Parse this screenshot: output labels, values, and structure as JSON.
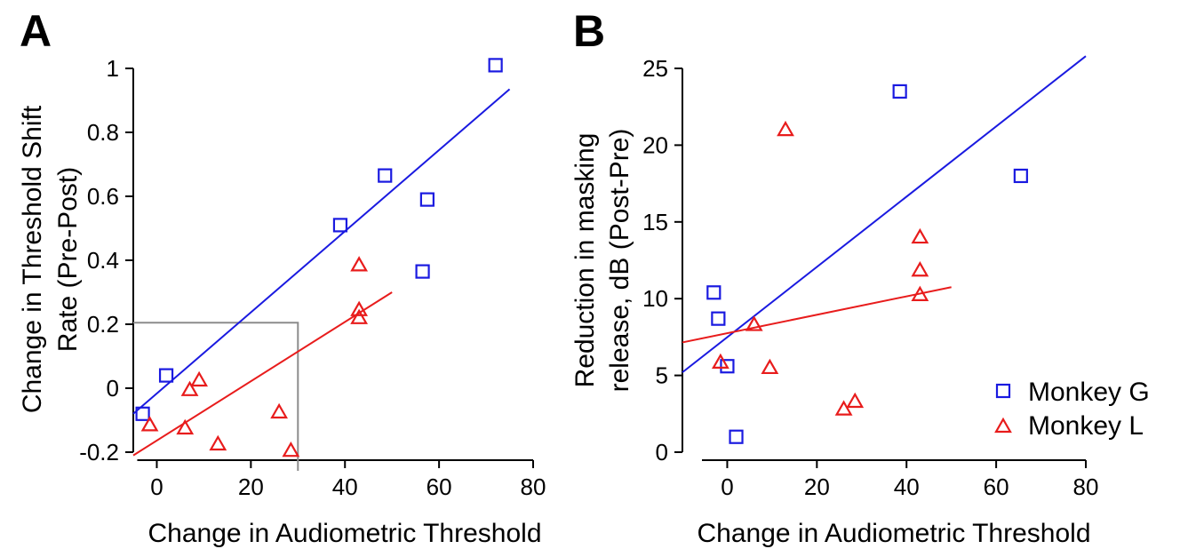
{
  "colors": {
    "monkey_g": "#1a1ae0",
    "monkey_l": "#e81c1c",
    "reference_box": "#8c8c8c",
    "axis": "#000000"
  },
  "chart_data": [
    {
      "panel": "A",
      "type": "scatter",
      "xlabel": "Change in Audiometric Threshold",
      "ylabel": [
        "Change in Threshold Shift",
        "Rate (Pre-Post)"
      ],
      "xlim": [
        -5,
        80
      ],
      "ylim": [
        -0.2,
        1.0
      ],
      "xticks": [
        0,
        20,
        40,
        60,
        80
      ],
      "xtick_labels": [
        "0",
        "20",
        "40",
        "60",
        "80"
      ],
      "yticks": [
        -0.2,
        0,
        0.2,
        0.4,
        0.6,
        0.8,
        1.0
      ],
      "ytick_labels": [
        "-0.2",
        "0",
        "0.2",
        "0.4",
        "0.6",
        "0.8",
        "1"
      ],
      "grid": false,
      "series": [
        {
          "key": "monkey_g",
          "marker": "square",
          "points": [
            [
              -3,
              -0.08
            ],
            [
              2,
              0.04
            ],
            [
              39,
              0.51
            ],
            [
              48.5,
              0.665
            ],
            [
              57.5,
              0.59
            ],
            [
              56.5,
              0.365
            ],
            [
              72,
              1.01
            ]
          ],
          "fit": [
            [
              -5,
              -0.08
            ],
            [
              75,
              0.935
            ]
          ]
        },
        {
          "key": "monkey_l",
          "marker": "triangle",
          "points": [
            [
              -1.5,
              -0.115
            ],
            [
              6,
              -0.125
            ],
            [
              7,
              -0.005
            ],
            [
              9,
              0.025
            ],
            [
              13,
              -0.175
            ],
            [
              26,
              -0.075
            ],
            [
              28.5,
              -0.195
            ],
            [
              43,
              0.385
            ],
            [
              43,
              0.245
            ],
            [
              43,
              0.22
            ]
          ],
          "fit": [
            [
              -5,
              -0.21
            ],
            [
              50,
              0.3
            ]
          ]
        }
      ],
      "reference_box": {
        "x": [
          -5,
          30
        ],
        "y": [
          -0.2,
          0.205
        ]
      }
    },
    {
      "panel": "B",
      "type": "scatter",
      "xlabel": "Change in Audiometric Threshold",
      "ylabel": [
        "Reduction in masking",
        "release, dB (Post-Pre)"
      ],
      "xlim": [
        -10,
        80
      ],
      "ylim": [
        0,
        25
      ],
      "xticks": [
        0,
        20,
        40,
        60,
        80
      ],
      "xtick_labels": [
        "0",
        "20",
        "40",
        "60",
        "80"
      ],
      "yticks": [
        0,
        5,
        10,
        15,
        20,
        25
      ],
      "ytick_labels": [
        "0",
        "5",
        "10",
        "15",
        "20",
        "25"
      ],
      "grid": false,
      "legend_position": "bottom-right",
      "series": [
        {
          "key": "monkey_g",
          "name": "Monkey G",
          "marker": "square",
          "points": [
            [
              -3,
              10.4
            ],
            [
              -2,
              8.7
            ],
            [
              0,
              5.6
            ],
            [
              2,
              1.0
            ],
            [
              38.5,
              23.5
            ],
            [
              65.5,
              18.0
            ]
          ],
          "fit": [
            [
              -10,
              5.2
            ],
            [
              80,
              25.8
            ]
          ]
        },
        {
          "key": "monkey_l",
          "name": "Monkey L",
          "marker": "triangle",
          "points": [
            [
              -1.5,
              5.85
            ],
            [
              6,
              8.3
            ],
            [
              9.5,
              5.5
            ],
            [
              13,
              21.0
            ],
            [
              26,
              2.8
            ],
            [
              28.5,
              3.3
            ],
            [
              43,
              14.0
            ],
            [
              43,
              11.85
            ],
            [
              43,
              10.25
            ]
          ],
          "fit": [
            [
              -10,
              7.15
            ],
            [
              50,
              10.75
            ]
          ]
        }
      ]
    }
  ]
}
